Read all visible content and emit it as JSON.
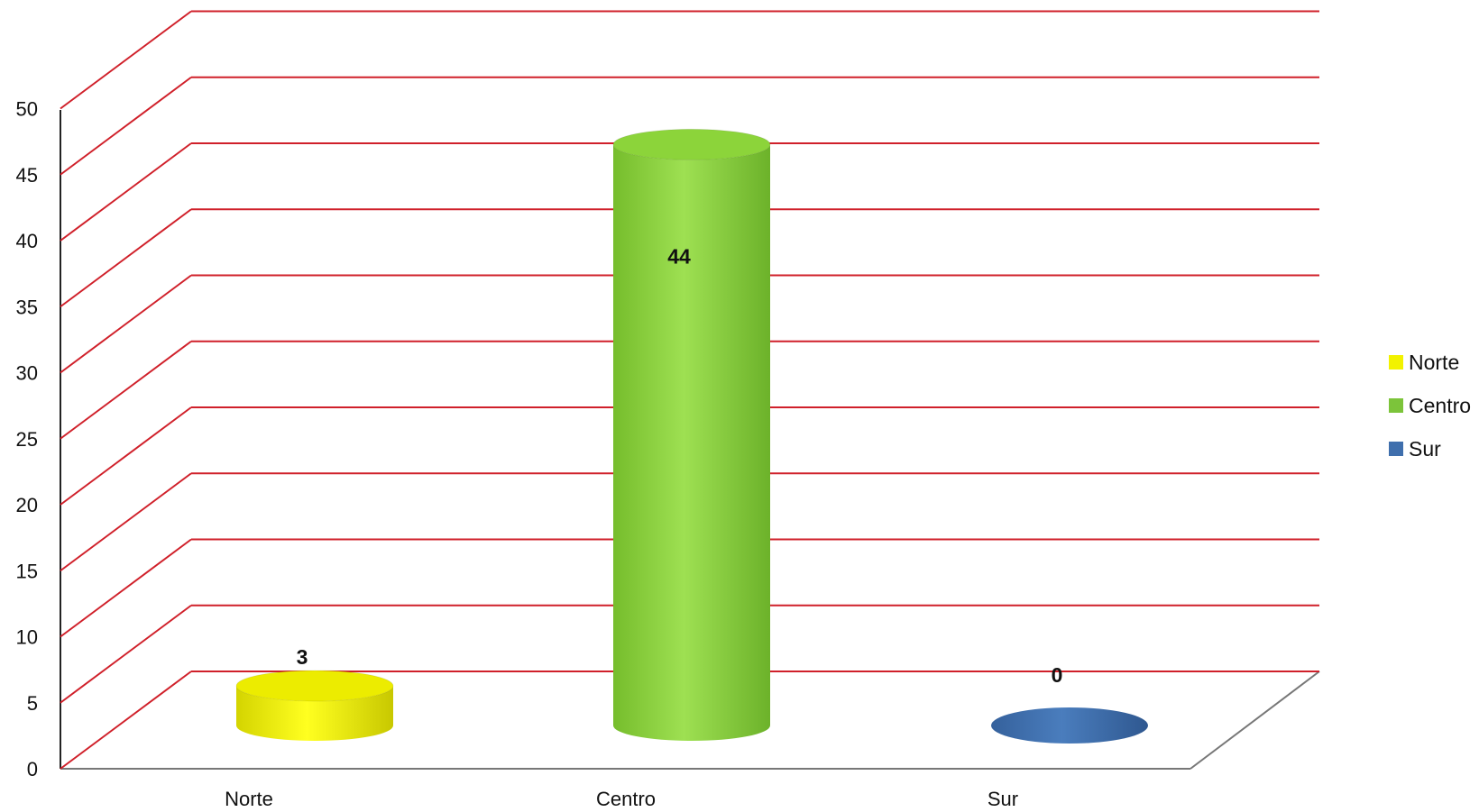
{
  "chart_data": {
    "type": "bar",
    "style": "3d-cylinder",
    "title": "",
    "xlabel": "",
    "ylabel": "",
    "categories": [
      "Norte",
      "Centro",
      "Sur"
    ],
    "series": [
      {
        "name": "Norte",
        "color": "#ecec00",
        "values": [
          3,
          null,
          null
        ]
      },
      {
        "name": "Centro",
        "color": "#8cd43a",
        "values": [
          null,
          44,
          null
        ]
      },
      {
        "name": "Sur",
        "color": "#3f6fad",
        "values": [
          null,
          null,
          0
        ]
      }
    ],
    "data_labels": [
      "3",
      "44",
      "0"
    ],
    "ylim": [
      0,
      50
    ],
    "yticks": [
      "0",
      "5",
      "10",
      "15",
      "20",
      "25",
      "30",
      "35",
      "40",
      "45",
      "50"
    ],
    "grid": true,
    "grid_color": "#d0202a",
    "legend_position": "right",
    "legend": [
      {
        "label": "Norte",
        "color": "#f2f200"
      },
      {
        "label": "Centro",
        "color": "#7cc43a"
      },
      {
        "label": "Sur",
        "color": "#3f6fad"
      }
    ]
  }
}
